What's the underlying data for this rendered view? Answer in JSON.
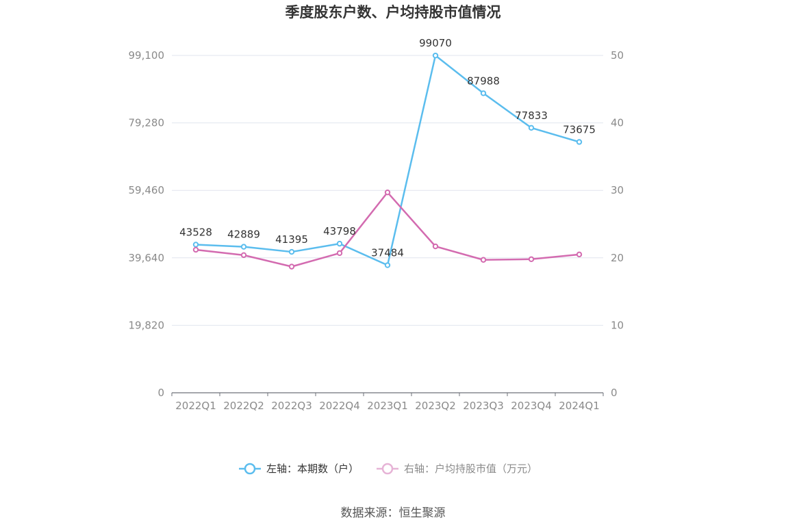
{
  "chart_data": {
    "type": "line",
    "title": "季度股东户数、户均持股市值情况",
    "source": "数据来源：恒生聚源",
    "categories": [
      "2022Q1",
      "2022Q2",
      "2022Q3",
      "2022Q4",
      "2023Q1",
      "2023Q2",
      "2023Q3",
      "2023Q4",
      "2024Q1"
    ],
    "left_axis": {
      "ticks": [
        "0",
        "19,820",
        "39,640",
        "59,460",
        "79,280",
        "99,100"
      ],
      "ylim": [
        0,
        99100
      ]
    },
    "right_axis": {
      "ticks": [
        "0",
        "10",
        "20",
        "30",
        "40",
        "50"
      ],
      "ylim": [
        0,
        50
      ]
    },
    "series": [
      {
        "name": "左轴：本期数（户）",
        "axis": "left",
        "color": "#5bbdee",
        "values": [
          43528,
          42889,
          41395,
          43798,
          37484,
          99070,
          87988,
          77833,
          73675
        ],
        "labels": [
          "43528",
          "42889",
          "41395",
          "43798",
          "37484",
          "99070",
          "87988",
          "77833",
          "73675"
        ]
      },
      {
        "name": "右轴：户均持股市值（万元）",
        "axis": "right",
        "color": "#d36bb0",
        "values": [
          21.2,
          20.4,
          18.7,
          20.7,
          29.7,
          21.7,
          19.7,
          19.8,
          20.5
        ]
      }
    ],
    "grid": true,
    "legend": "bottom-center"
  }
}
